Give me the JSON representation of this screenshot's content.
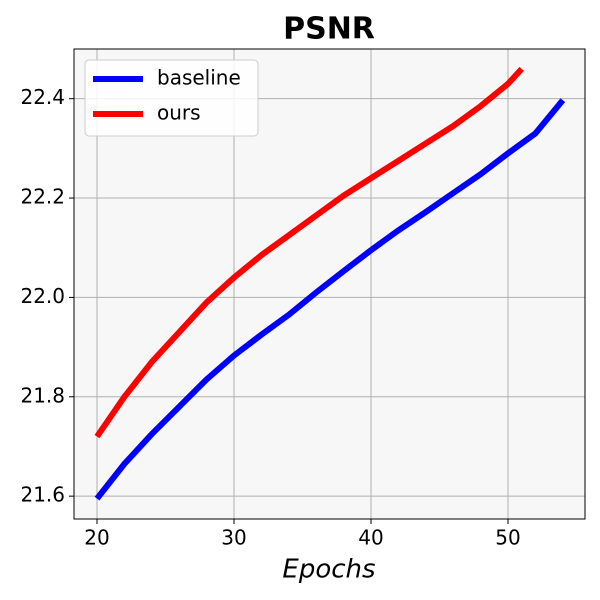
{
  "chart_data": {
    "type": "line",
    "title": "PSNR",
    "x_label": "Epochs",
    "xlim": [
      18.32,
      55.62
    ],
    "xticks": [
      20,
      30,
      40,
      50
    ],
    "ylim": [
      21.554,
      22.5
    ],
    "yticks": [
      {
        "value": 21.6,
        "label": "21.6"
      },
      {
        "value": 21.8,
        "label": "21.8"
      },
      {
        "value": 22.0,
        "label": "22.0"
      },
      {
        "value": 22.2,
        "label": "22.2"
      },
      {
        "value": 22.4,
        "label": "22.4"
      }
    ],
    "grid": true,
    "legend": "upper left",
    "series": [
      {
        "name": "baseline",
        "color": "#0000ff",
        "x": [
          20,
          22,
          24,
          26,
          28,
          30,
          32,
          34,
          36,
          38,
          40,
          42,
          44,
          46,
          48,
          50,
          52,
          54
        ],
        "values": [
          21.595,
          21.665,
          21.725,
          21.78,
          21.835,
          21.883,
          21.925,
          21.965,
          22.01,
          22.053,
          22.095,
          22.135,
          22.172,
          22.21,
          22.248,
          22.29,
          22.33,
          22.397
        ]
      },
      {
        "name": "ours",
        "color": "#ff0000",
        "x": [
          20,
          22,
          24,
          26,
          28,
          30,
          32,
          34,
          36,
          38,
          40,
          42,
          44,
          46,
          48,
          50,
          51
        ],
        "values": [
          21.72,
          21.8,
          21.87,
          21.93,
          21.99,
          22.04,
          22.085,
          22.125,
          22.165,
          22.205,
          22.24,
          22.275,
          22.31,
          22.345,
          22.385,
          22.43,
          22.46
        ]
      }
    ]
  }
}
